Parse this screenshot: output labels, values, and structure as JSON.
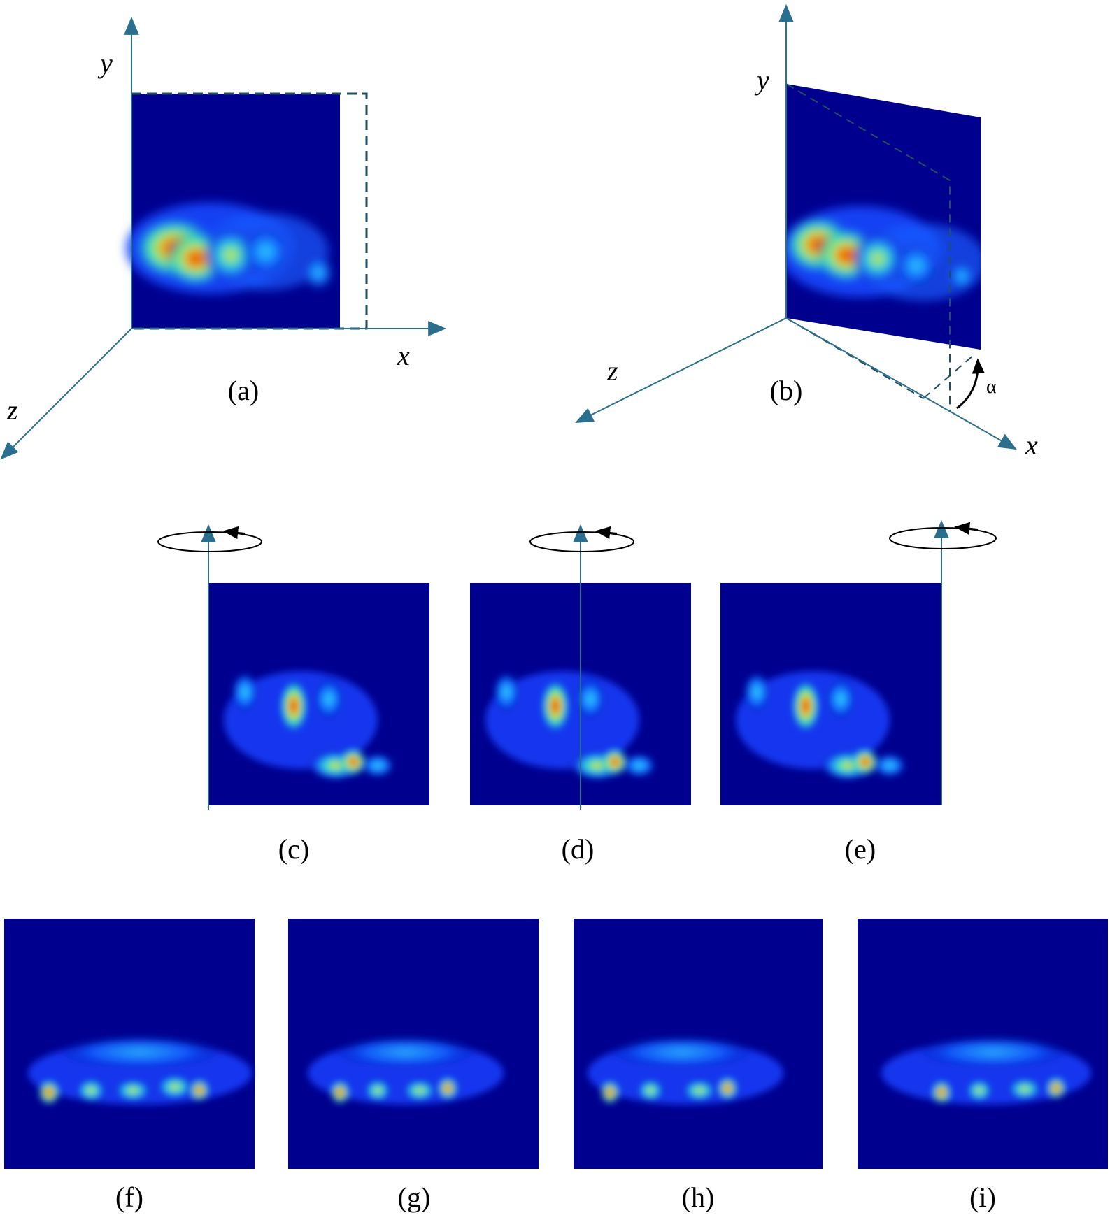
{
  "colors": {
    "axis": "#2b6f8e",
    "map_background": "#00008f",
    "dashed_outline": "#1f4f60"
  },
  "axes": {
    "a": {
      "x": "x",
      "y": "y",
      "z": "z"
    },
    "b": {
      "x": "x",
      "y": "y",
      "z": "z",
      "angle": "α"
    }
  },
  "panels": [
    {
      "id": "a",
      "caption": "(a)"
    },
    {
      "id": "b",
      "caption": "(b)"
    },
    {
      "id": "c",
      "caption": "(c)"
    },
    {
      "id": "d",
      "caption": "(d)"
    },
    {
      "id": "e",
      "caption": "(e)"
    },
    {
      "id": "f",
      "caption": "(f)"
    },
    {
      "id": "g",
      "caption": "(g)"
    },
    {
      "id": "h",
      "caption": "(h)"
    },
    {
      "id": "i",
      "caption": "(i)"
    }
  ]
}
